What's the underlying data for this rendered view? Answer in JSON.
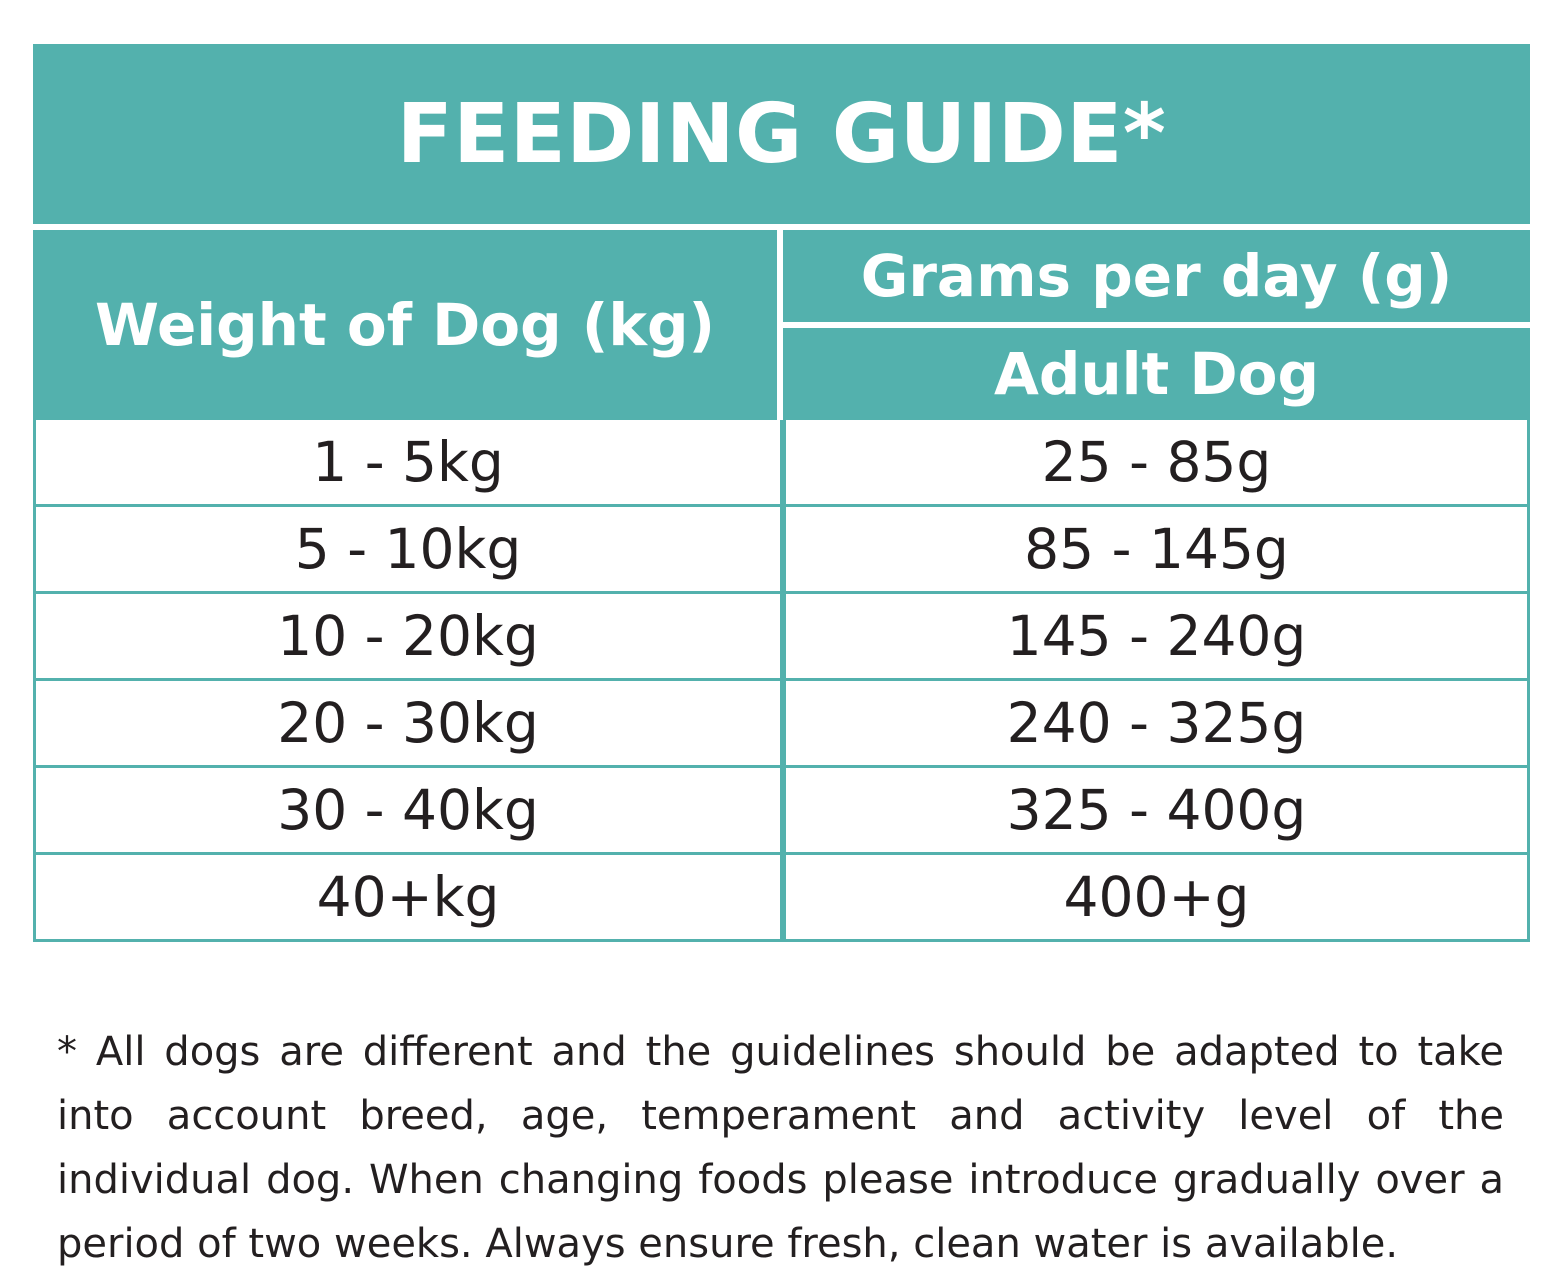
{
  "title": "FEEDING GUIDE*",
  "header": {
    "weight_label": "Weight of Dog (kg)",
    "grams_label": "Grams per day (g)",
    "adult_label": "Adult Dog"
  },
  "rows": [
    {
      "weight": "1 - 5kg",
      "grams": "25 - 85g"
    },
    {
      "weight": "5 - 10kg",
      "grams": "85 - 145g"
    },
    {
      "weight": "10 - 20kg",
      "grams": "145 - 240g"
    },
    {
      "weight": "20 - 30kg",
      "grams": "240 - 325g"
    },
    {
      "weight": "30 - 40kg",
      "grams": "325 - 400g"
    },
    {
      "weight": "40+kg",
      "grams": "400+g"
    }
  ],
  "footnote": "* All dogs are different and the guidelines should be adapted to take into account breed, age, temperament and activity level of the individual dog. When changing foods please introduce gradually over a period of two weeks. Always ensure fresh, clean water is available.",
  "colors": {
    "accent": "#53b1ad",
    "text": "#231f20"
  }
}
